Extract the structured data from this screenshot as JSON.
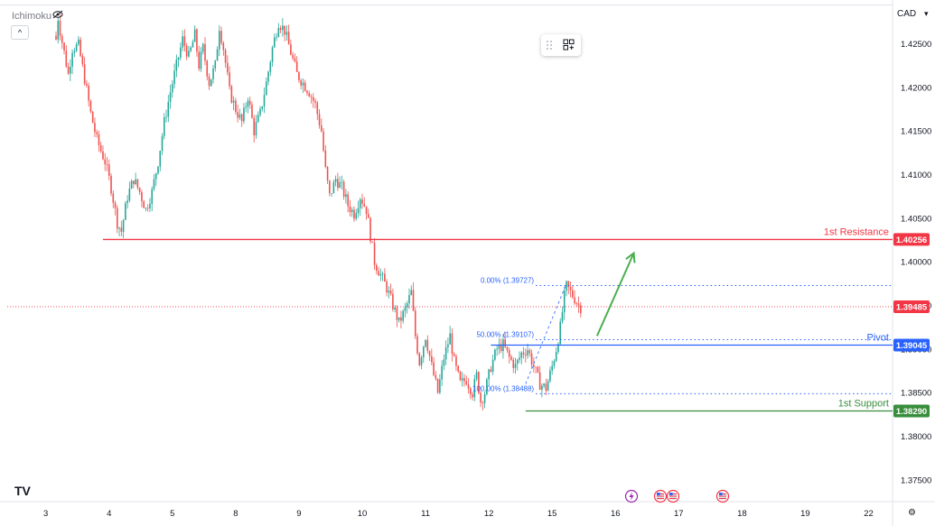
{
  "header": {
    "indicator_label": "Ichimoku",
    "currency": "CAD",
    "currency_caret": "▾",
    "collapse_glyph": "^",
    "logo_text": "TV",
    "settings_glyph": "⚙"
  },
  "colors": {
    "bull": "#26a69a",
    "bear": "#ef5350",
    "resistance": "#f23645",
    "pivot": "#2962ff",
    "support": "#388e3c",
    "fib": "#2962ff",
    "arrow": "#4caf50",
    "current_price": "#f23645",
    "axis_text": "#131722"
  },
  "chart_data": {
    "type": "candlestick",
    "symbol_currency": "CAD",
    "ylim": [
      1.3725,
      1.4295
    ],
    "y_ticks": [
      "1.42500",
      "1.42000",
      "1.41500",
      "1.41000",
      "1.40500",
      "1.40000",
      "1.39500",
      "1.39000",
      "1.38500",
      "1.38000",
      "1.37500"
    ],
    "x_ticks": [
      "3",
      "4",
      "5",
      "8",
      "9",
      "10",
      "11",
      "12",
      "15",
      "16",
      "17",
      "18",
      "19",
      "22"
    ],
    "close_path": [
      [
        0,
        1.4255
      ],
      [
        1,
        1.428
      ],
      [
        2,
        1.4265
      ],
      [
        4,
        1.424
      ],
      [
        6,
        1.4215
      ],
      [
        8,
        1.4245
      ],
      [
        11,
        1.4248
      ],
      [
        14,
        1.421
      ],
      [
        17,
        1.417
      ],
      [
        20,
        1.414
      ],
      [
        24,
        1.4115
      ],
      [
        27,
        1.4085
      ],
      [
        30,
        1.4045
      ],
      [
        32,
        1.4035
      ],
      [
        35,
        1.4075
      ],
      [
        38,
        1.4095
      ],
      [
        41,
        1.408
      ],
      [
        44,
        1.406
      ],
      [
        47,
        1.408
      ],
      [
        50,
        1.4115
      ],
      [
        53,
        1.416
      ],
      [
        56,
        1.4195
      ],
      [
        59,
        1.4225
      ],
      [
        62,
        1.4255
      ],
      [
        65,
        1.4235
      ],
      [
        68,
        1.426
      ],
      [
        70,
        1.4225
      ],
      [
        72,
        1.4245
      ],
      [
        75,
        1.4205
      ],
      [
        78,
        1.4225
      ],
      [
        80,
        1.427
      ],
      [
        82,
        1.4245
      ],
      [
        85,
        1.4195
      ],
      [
        88,
        1.4175
      ],
      [
        91,
        1.416
      ],
      [
        94,
        1.419
      ],
      [
        97,
        1.415
      ],
      [
        100,
        1.417
      ],
      [
        103,
        1.4205
      ],
      [
        106,
        1.4245
      ],
      [
        109,
        1.4275
      ],
      [
        112,
        1.4265
      ],
      [
        115,
        1.424
      ],
      [
        118,
        1.4215
      ],
      [
        121,
        1.4205
      ],
      [
        124,
        1.4195
      ],
      [
        127,
        1.418
      ],
      [
        130,
        1.415
      ],
      [
        132,
        1.4105
      ],
      [
        134,
        1.4075
      ],
      [
        137,
        1.4095
      ],
      [
        140,
        1.4085
      ],
      [
        143,
        1.4065
      ],
      [
        146,
        1.4055
      ],
      [
        149,
        1.4075
      ],
      [
        152,
        1.406
      ],
      [
        154,
        1.403
      ],
      [
        156,
        1.4
      ],
      [
        159,
        1.3985
      ],
      [
        162,
        1.397
      ],
      [
        165,
        1.395
      ],
      [
        168,
        1.393
      ],
      [
        171,
        1.3945
      ],
      [
        174,
        1.3965
      ],
      [
        176,
        1.3915
      ],
      [
        178,
        1.3885
      ],
      [
        181,
        1.3915
      ],
      [
        184,
        1.388
      ],
      [
        187,
        1.385
      ],
      [
        190,
        1.389
      ],
      [
        193,
        1.3915
      ],
      [
        195,
        1.3885
      ],
      [
        198,
        1.386
      ],
      [
        201,
        1.3865
      ],
      [
        204,
        1.385
      ],
      [
        206,
        1.387
      ],
      [
        208,
        1.384
      ],
      [
        210,
        1.385
      ],
      [
        213,
        1.388
      ],
      [
        216,
        1.39
      ],
      [
        219,
        1.3905
      ],
      [
        222,
        1.389
      ],
      [
        225,
        1.388
      ],
      [
        228,
        1.3895
      ],
      [
        231,
        1.39
      ],
      [
        234,
        1.388
      ],
      [
        237,
        1.386
      ],
      [
        240,
        1.3855
      ],
      [
        243,
        1.388
      ],
      [
        245,
        1.39
      ],
      [
        247,
        1.3925
      ],
      [
        249,
        1.396
      ],
      [
        250,
        1.3972
      ],
      [
        252,
        1.3965
      ],
      [
        254,
        1.3958
      ],
      [
        256,
        1.395
      ],
      [
        257,
        1.3948
      ]
    ],
    "levels": [
      {
        "name": "1st Resistance",
        "value": "1.40256",
        "y": 1.40256,
        "color_key": "resistance"
      },
      {
        "name": "Pivot",
        "value": "1.39045",
        "y": 1.39045,
        "color_key": "pivot"
      },
      {
        "name": "1st Support",
        "value": "1.38290",
        "y": 1.3829,
        "color_key": "support"
      }
    ],
    "fib_levels": [
      {
        "label": "0.00% (1.39727)",
        "y": 1.39727
      },
      {
        "label": "50.00% (1.39107)",
        "y": 1.39107
      },
      {
        "label": "100.00% (1.38488)",
        "y": 1.38488
      }
    ],
    "current_price": {
      "label": "1.39485",
      "y": 1.39485
    },
    "arrow": {
      "from_bar": 265,
      "from_y": 1.3915,
      "to_bar": 283,
      "to_y": 1.401
    },
    "event_icons": [
      "lightning",
      "flag",
      "flag",
      "flag"
    ],
    "grid": false
  }
}
